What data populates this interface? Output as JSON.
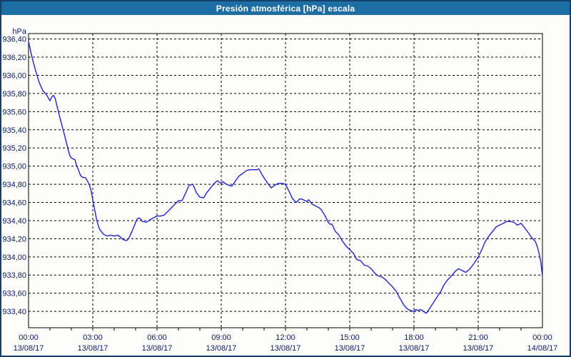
{
  "window": {
    "title": "Presión atmosférica [hPa] escala"
  },
  "colors": {
    "titlebar_bg": "#1D6EA5",
    "title_text": "#FFFFFF",
    "window_border": "#16406B",
    "plot_bg": "#FCFDFB",
    "grid": "#000000",
    "axis": "#000000",
    "line": "#2323CE",
    "label_text": "#0A1A5C"
  },
  "chart_data": {
    "type": "line",
    "title": "Presión atmosférica [hPa] escala",
    "xlabel": "",
    "ylabel": "hPa",
    "unit": "hPa",
    "grid": true,
    "legend": "none",
    "ylim": [
      933.22,
      936.46
    ],
    "xlim_hours": [
      0,
      24
    ],
    "y_ticks": [
      {
        "v": 936.4,
        "label": "936,40"
      },
      {
        "v": 936.2,
        "label": "936,20"
      },
      {
        "v": 936.0,
        "label": "936,00"
      },
      {
        "v": 935.8,
        "label": "935,80"
      },
      {
        "v": 935.6,
        "label": "935,60"
      },
      {
        "v": 935.4,
        "label": "935,40"
      },
      {
        "v": 935.2,
        "label": "935,20"
      },
      {
        "v": 935.0,
        "label": "935,00"
      },
      {
        "v": 934.8,
        "label": "934,80"
      },
      {
        "v": 934.6,
        "label": "934,60"
      },
      {
        "v": 934.4,
        "label": "934,40"
      },
      {
        "v": 934.2,
        "label": "934,20"
      },
      {
        "v": 934.0,
        "label": "934,00"
      },
      {
        "v": 933.8,
        "label": "933,80"
      },
      {
        "v": 933.6,
        "label": "933,60"
      },
      {
        "v": 933.4,
        "label": "933,40"
      }
    ],
    "x_ticks": [
      {
        "h": 0,
        "time": "00:00",
        "date": "13/08/17"
      },
      {
        "h": 3,
        "time": "03:00",
        "date": "13/08/17"
      },
      {
        "h": 6,
        "time": "06:00",
        "date": "13/08/17"
      },
      {
        "h": 9,
        "time": "09:00",
        "date": "13/08/17"
      },
      {
        "h": 12,
        "time": "12:00",
        "date": "13/08/17"
      },
      {
        "h": 15,
        "time": "15:00",
        "date": "13/08/17"
      },
      {
        "h": 18,
        "time": "18:00",
        "date": "13/08/17"
      },
      {
        "h": 21,
        "time": "21:00",
        "date": "13/08/17"
      },
      {
        "h": 24,
        "time": "00:00",
        "date": "14/08/17"
      }
    ],
    "series": [
      {
        "name": "Presión atmosférica",
        "points": [
          [
            0.0,
            936.37
          ],
          [
            0.17,
            936.19
          ],
          [
            0.33,
            936.05
          ],
          [
            0.5,
            935.92
          ],
          [
            0.67,
            935.83
          ],
          [
            0.83,
            935.79
          ],
          [
            1.0,
            935.72
          ],
          [
            1.08,
            935.76
          ],
          [
            1.17,
            935.78
          ],
          [
            1.25,
            935.74
          ],
          [
            1.33,
            935.66
          ],
          [
            1.5,
            935.5
          ],
          [
            1.67,
            935.35
          ],
          [
            1.83,
            935.2
          ],
          [
            1.92,
            935.12
          ],
          [
            2.0,
            935.09
          ],
          [
            2.08,
            935.08
          ],
          [
            2.17,
            935.07
          ],
          [
            2.25,
            935.0
          ],
          [
            2.33,
            934.96
          ],
          [
            2.42,
            934.9
          ],
          [
            2.5,
            934.88
          ],
          [
            2.67,
            934.87
          ],
          [
            2.83,
            934.8
          ],
          [
            2.92,
            934.73
          ],
          [
            3.0,
            934.63
          ],
          [
            3.08,
            934.53
          ],
          [
            3.17,
            934.42
          ],
          [
            3.25,
            934.35
          ],
          [
            3.33,
            934.3
          ],
          [
            3.5,
            934.25
          ],
          [
            3.67,
            934.23
          ],
          [
            3.83,
            934.24
          ],
          [
            4.0,
            934.23
          ],
          [
            4.17,
            934.24
          ],
          [
            4.33,
            934.21
          ],
          [
            4.42,
            934.19
          ],
          [
            4.58,
            934.18
          ],
          [
            4.67,
            934.2
          ],
          [
            4.83,
            934.28
          ],
          [
            5.0,
            934.38
          ],
          [
            5.08,
            934.42
          ],
          [
            5.17,
            934.43
          ],
          [
            5.33,
            934.39
          ],
          [
            5.5,
            934.38
          ],
          [
            5.67,
            934.41
          ],
          [
            5.83,
            934.43
          ],
          [
            6.0,
            934.45
          ],
          [
            6.17,
            934.45
          ],
          [
            6.33,
            934.46
          ],
          [
            6.5,
            934.5
          ],
          [
            6.67,
            934.54
          ],
          [
            6.83,
            934.58
          ],
          [
            7.0,
            934.62
          ],
          [
            7.17,
            934.62
          ],
          [
            7.33,
            934.7
          ],
          [
            7.5,
            934.79
          ],
          [
            7.67,
            934.8
          ],
          [
            7.75,
            934.76
          ],
          [
            7.83,
            934.71
          ],
          [
            8.0,
            934.66
          ],
          [
            8.17,
            934.65
          ],
          [
            8.33,
            934.71
          ],
          [
            8.5,
            934.76
          ],
          [
            8.67,
            934.81
          ],
          [
            8.83,
            934.84
          ],
          [
            8.92,
            934.82
          ],
          [
            9.0,
            934.81
          ],
          [
            9.08,
            934.83
          ],
          [
            9.17,
            934.81
          ],
          [
            9.33,
            934.79
          ],
          [
            9.5,
            934.78
          ],
          [
            9.67,
            934.84
          ],
          [
            9.83,
            934.89
          ],
          [
            10.0,
            934.92
          ],
          [
            10.17,
            934.95
          ],
          [
            10.33,
            934.96
          ],
          [
            10.5,
            934.96
          ],
          [
            10.67,
            934.96
          ],
          [
            10.75,
            934.97
          ],
          [
            10.83,
            934.94
          ],
          [
            10.92,
            934.9
          ],
          [
            11.0,
            934.87
          ],
          [
            11.17,
            934.81
          ],
          [
            11.33,
            934.76
          ],
          [
            11.5,
            934.79
          ],
          [
            11.67,
            934.81
          ],
          [
            11.83,
            934.81
          ],
          [
            12.0,
            934.8
          ],
          [
            12.17,
            934.72
          ],
          [
            12.33,
            934.64
          ],
          [
            12.5,
            934.6
          ],
          [
            12.67,
            934.64
          ],
          [
            12.83,
            934.63
          ],
          [
            13.0,
            934.61
          ],
          [
            13.08,
            934.63
          ],
          [
            13.25,
            934.58
          ],
          [
            13.42,
            934.56
          ],
          [
            13.58,
            934.54
          ],
          [
            13.67,
            934.52
          ],
          [
            13.83,
            934.46
          ],
          [
            14.0,
            934.38
          ],
          [
            14.08,
            934.36
          ],
          [
            14.17,
            934.36
          ],
          [
            14.33,
            934.28
          ],
          [
            14.5,
            934.24
          ],
          [
            14.67,
            934.17
          ],
          [
            14.83,
            934.12
          ],
          [
            15.0,
            934.08
          ],
          [
            15.17,
            934.04
          ],
          [
            15.33,
            933.97
          ],
          [
            15.5,
            933.96
          ],
          [
            15.67,
            933.91
          ],
          [
            15.83,
            933.9
          ],
          [
            16.0,
            933.87
          ],
          [
            16.17,
            933.82
          ],
          [
            16.33,
            933.79
          ],
          [
            16.5,
            933.78
          ],
          [
            16.67,
            933.75
          ],
          [
            16.83,
            933.71
          ],
          [
            17.0,
            933.67
          ],
          [
            17.17,
            933.62
          ],
          [
            17.33,
            933.55
          ],
          [
            17.5,
            933.48
          ],
          [
            17.67,
            933.43
          ],
          [
            17.83,
            933.41
          ],
          [
            18.0,
            933.4
          ],
          [
            18.08,
            933.42
          ],
          [
            18.17,
            933.41
          ],
          [
            18.33,
            933.42
          ],
          [
            18.5,
            933.39
          ],
          [
            18.58,
            933.38
          ],
          [
            18.75,
            933.44
          ],
          [
            18.92,
            933.5
          ],
          [
            19.08,
            933.56
          ],
          [
            19.25,
            933.62
          ],
          [
            19.42,
            933.7
          ],
          [
            19.58,
            933.75
          ],
          [
            19.75,
            933.79
          ],
          [
            19.92,
            933.84
          ],
          [
            20.08,
            933.87
          ],
          [
            20.17,
            933.86
          ],
          [
            20.33,
            933.84
          ],
          [
            20.42,
            933.83
          ],
          [
            20.58,
            933.86
          ],
          [
            20.75,
            933.91
          ],
          [
            20.92,
            933.97
          ],
          [
            21.0,
            934.0
          ],
          [
            21.17,
            934.08
          ],
          [
            21.33,
            934.17
          ],
          [
            21.5,
            934.23
          ],
          [
            21.67,
            934.28
          ],
          [
            21.83,
            934.33
          ],
          [
            22.0,
            934.35
          ],
          [
            22.17,
            934.37
          ],
          [
            22.33,
            934.39
          ],
          [
            22.5,
            934.39
          ],
          [
            22.67,
            934.38
          ],
          [
            22.83,
            934.35
          ],
          [
            23.0,
            934.37
          ],
          [
            23.17,
            934.32
          ],
          [
            23.33,
            934.27
          ],
          [
            23.5,
            934.21
          ],
          [
            23.67,
            934.17
          ],
          [
            23.75,
            934.12
          ],
          [
            23.83,
            934.05
          ],
          [
            23.92,
            933.95
          ],
          [
            24.0,
            933.79
          ]
        ]
      }
    ]
  }
}
